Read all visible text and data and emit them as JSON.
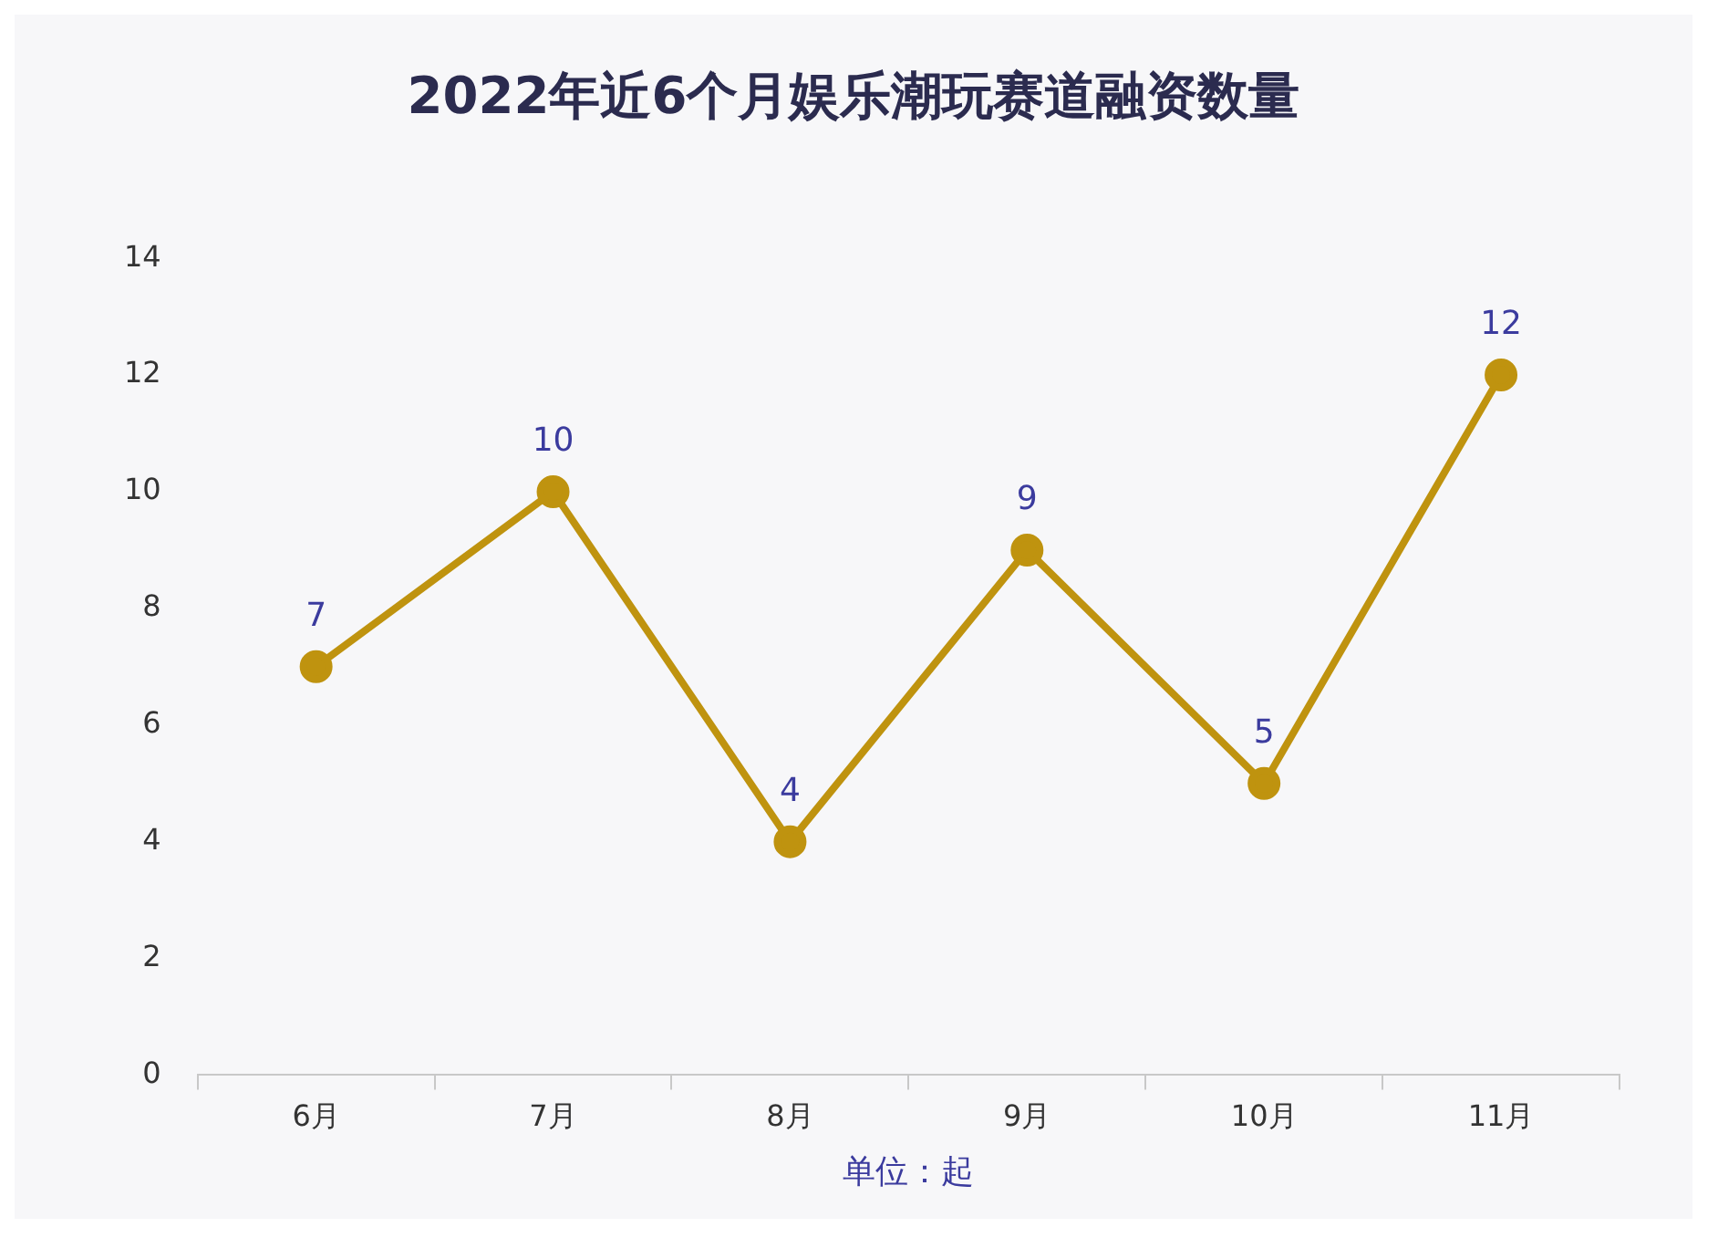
{
  "chart_data": {
    "type": "line",
    "title": "2022年近6个月娱乐潮玩赛道融资数量",
    "xlabel": "单位：起",
    "categories": [
      "6月",
      "7月",
      "8月",
      "9月",
      "10月",
      "11月"
    ],
    "series": [
      {
        "color": "#bf930f",
        "values": [
          7,
          10,
          4,
          9,
          5,
          12
        ]
      }
    ],
    "ylim": [
      0,
      14
    ],
    "yticks": [
      0,
      2,
      4,
      6,
      8,
      10,
      12,
      14
    ],
    "grid": false,
    "legend": false,
    "marker": "circle",
    "line_style": "solid",
    "data_labels": true
  }
}
